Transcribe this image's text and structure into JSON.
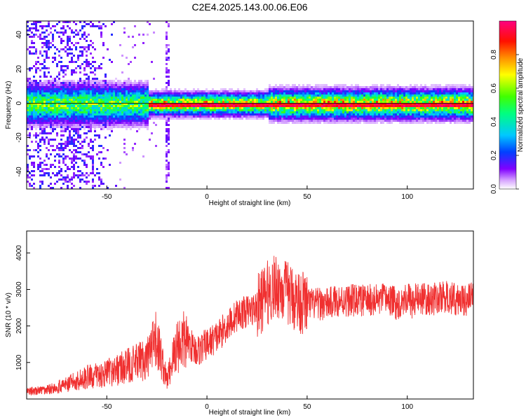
{
  "title": "C2E4.2025.143.00.06.E06",
  "colors": {
    "snr_line": "#f03030",
    "frame": "#000000"
  },
  "chart_data": [
    {
      "type": "heatmap",
      "xlabel": "Height of straight line (km)",
      "ylabel": "Frequency (Hz)",
      "xlim": [
        -90,
        133
      ],
      "ylim": [
        -50,
        48
      ],
      "x_ticks": [
        "-50",
        "0",
        "50",
        "100"
      ],
      "x_tick_values": [
        -50,
        0,
        50,
        100
      ],
      "y_ticks": [
        "-40",
        "-20",
        "0",
        "20",
        "40"
      ],
      "y_tick_values": [
        -40,
        -20,
        0,
        20,
        40
      ],
      "colorbar": {
        "label": "Normalized spectral amplitude",
        "range": [
          0,
          1
        ],
        "ticks": [
          "0.0",
          "0.2",
          "0.4",
          "0.6",
          "0.8"
        ],
        "tick_values": [
          0.0,
          0.2,
          0.4,
          0.6,
          0.8
        ],
        "colormap": "rainbow (white-violet-blue-cyan-green-yellow-orange-red-magenta)"
      },
      "description_points": {
        "peak_frequency_hz": 0,
        "noisy_region_km": [
          -90,
          -45
        ],
        "spike_height_km": -20
      }
    },
    {
      "type": "line",
      "xlabel": "Height of straight line (km)",
      "ylabel": "SNR (10 * v/v)",
      "xlim": [
        -90,
        133
      ],
      "ylim": [
        0,
        4600
      ],
      "x_ticks": [
        "-50",
        "0",
        "50",
        "100"
      ],
      "x_tick_values": [
        -50,
        0,
        50,
        100
      ],
      "y_ticks": [
        "1000",
        "2000",
        "3000",
        "4000"
      ],
      "y_tick_values": [
        1000,
        2000,
        3000,
        4000
      ],
      "series": [
        {
          "x": [
            -90,
            -80,
            -70,
            -60,
            -50,
            -40,
            -30,
            -25,
            -20,
            -15,
            -10,
            -5,
            0,
            5,
            10,
            15,
            20,
            25,
            30,
            35,
            40,
            45,
            50,
            55,
            60,
            65,
            70,
            75,
            80,
            85,
            90,
            95,
            100,
            103,
            105,
            110,
            115,
            120,
            125,
            133
          ],
          "values": [
            200,
            250,
            400,
            600,
            700,
            900,
            1100,
            1600,
            500,
            1500,
            1600,
            1300,
            1500,
            1700,
            2000,
            2300,
            2400,
            2500,
            2900,
            3100,
            2900,
            2700,
            2600,
            2600,
            2600,
            2700,
            2700,
            2700,
            2700,
            2700,
            2750,
            2600,
            2800,
            2600,
            2800,
            2700,
            2750,
            2800,
            2700,
            2750
          ]
        }
      ]
    }
  ]
}
